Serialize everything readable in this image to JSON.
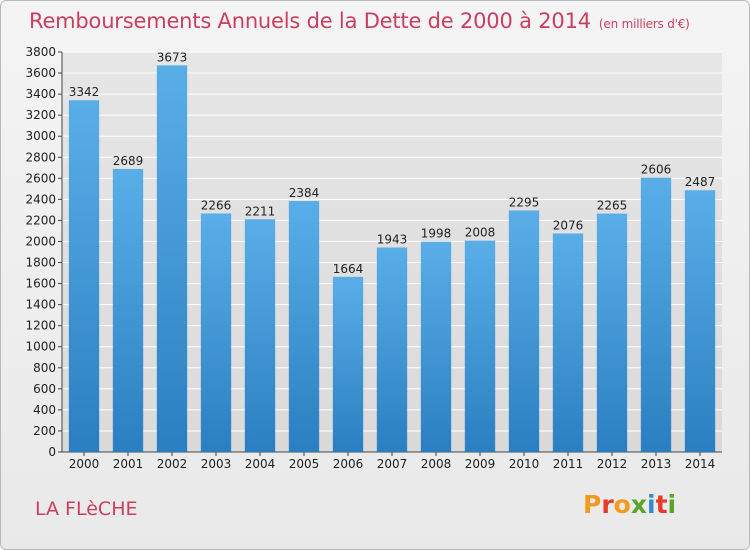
{
  "header": {
    "title": "Remboursements Annuels de la Dette de 2000 à 2014",
    "unit": "(en milliers d'€)"
  },
  "footer": {
    "commune": "LA FLèCHE",
    "logo_text": "Proxiti",
    "logo_colors": [
      "#f29a1c",
      "#e8392b",
      "#f29a1c",
      "#5aa42a",
      "#2f8bd0",
      "#e8392b",
      "#5aa42a"
    ]
  },
  "colors": {
    "bar_top": "#5aaee8",
    "bar_bottom": "#2a7fc1",
    "grid": "#ffffff",
    "title": "#cc3e5e"
  },
  "chart_data": {
    "type": "bar",
    "title": "Remboursements Annuels de la Dette de 2000 à 2014",
    "xlabel": "",
    "ylabel": "",
    "categories": [
      "2000",
      "2001",
      "2002",
      "2003",
      "2004",
      "2005",
      "2006",
      "2007",
      "2008",
      "2009",
      "2010",
      "2011",
      "2012",
      "2013",
      "2014"
    ],
    "values": [
      3342,
      2689,
      3673,
      2266,
      2211,
      2384,
      1664,
      1943,
      1998,
      2008,
      2295,
      2076,
      2265,
      2606,
      2487
    ],
    "ylim": [
      0,
      3800
    ],
    "yticks": [
      0,
      200,
      400,
      600,
      800,
      1000,
      1200,
      1400,
      1600,
      1800,
      2000,
      2200,
      2400,
      2600,
      2800,
      3000,
      3200,
      3400,
      3600,
      3800
    ],
    "grid": true
  }
}
